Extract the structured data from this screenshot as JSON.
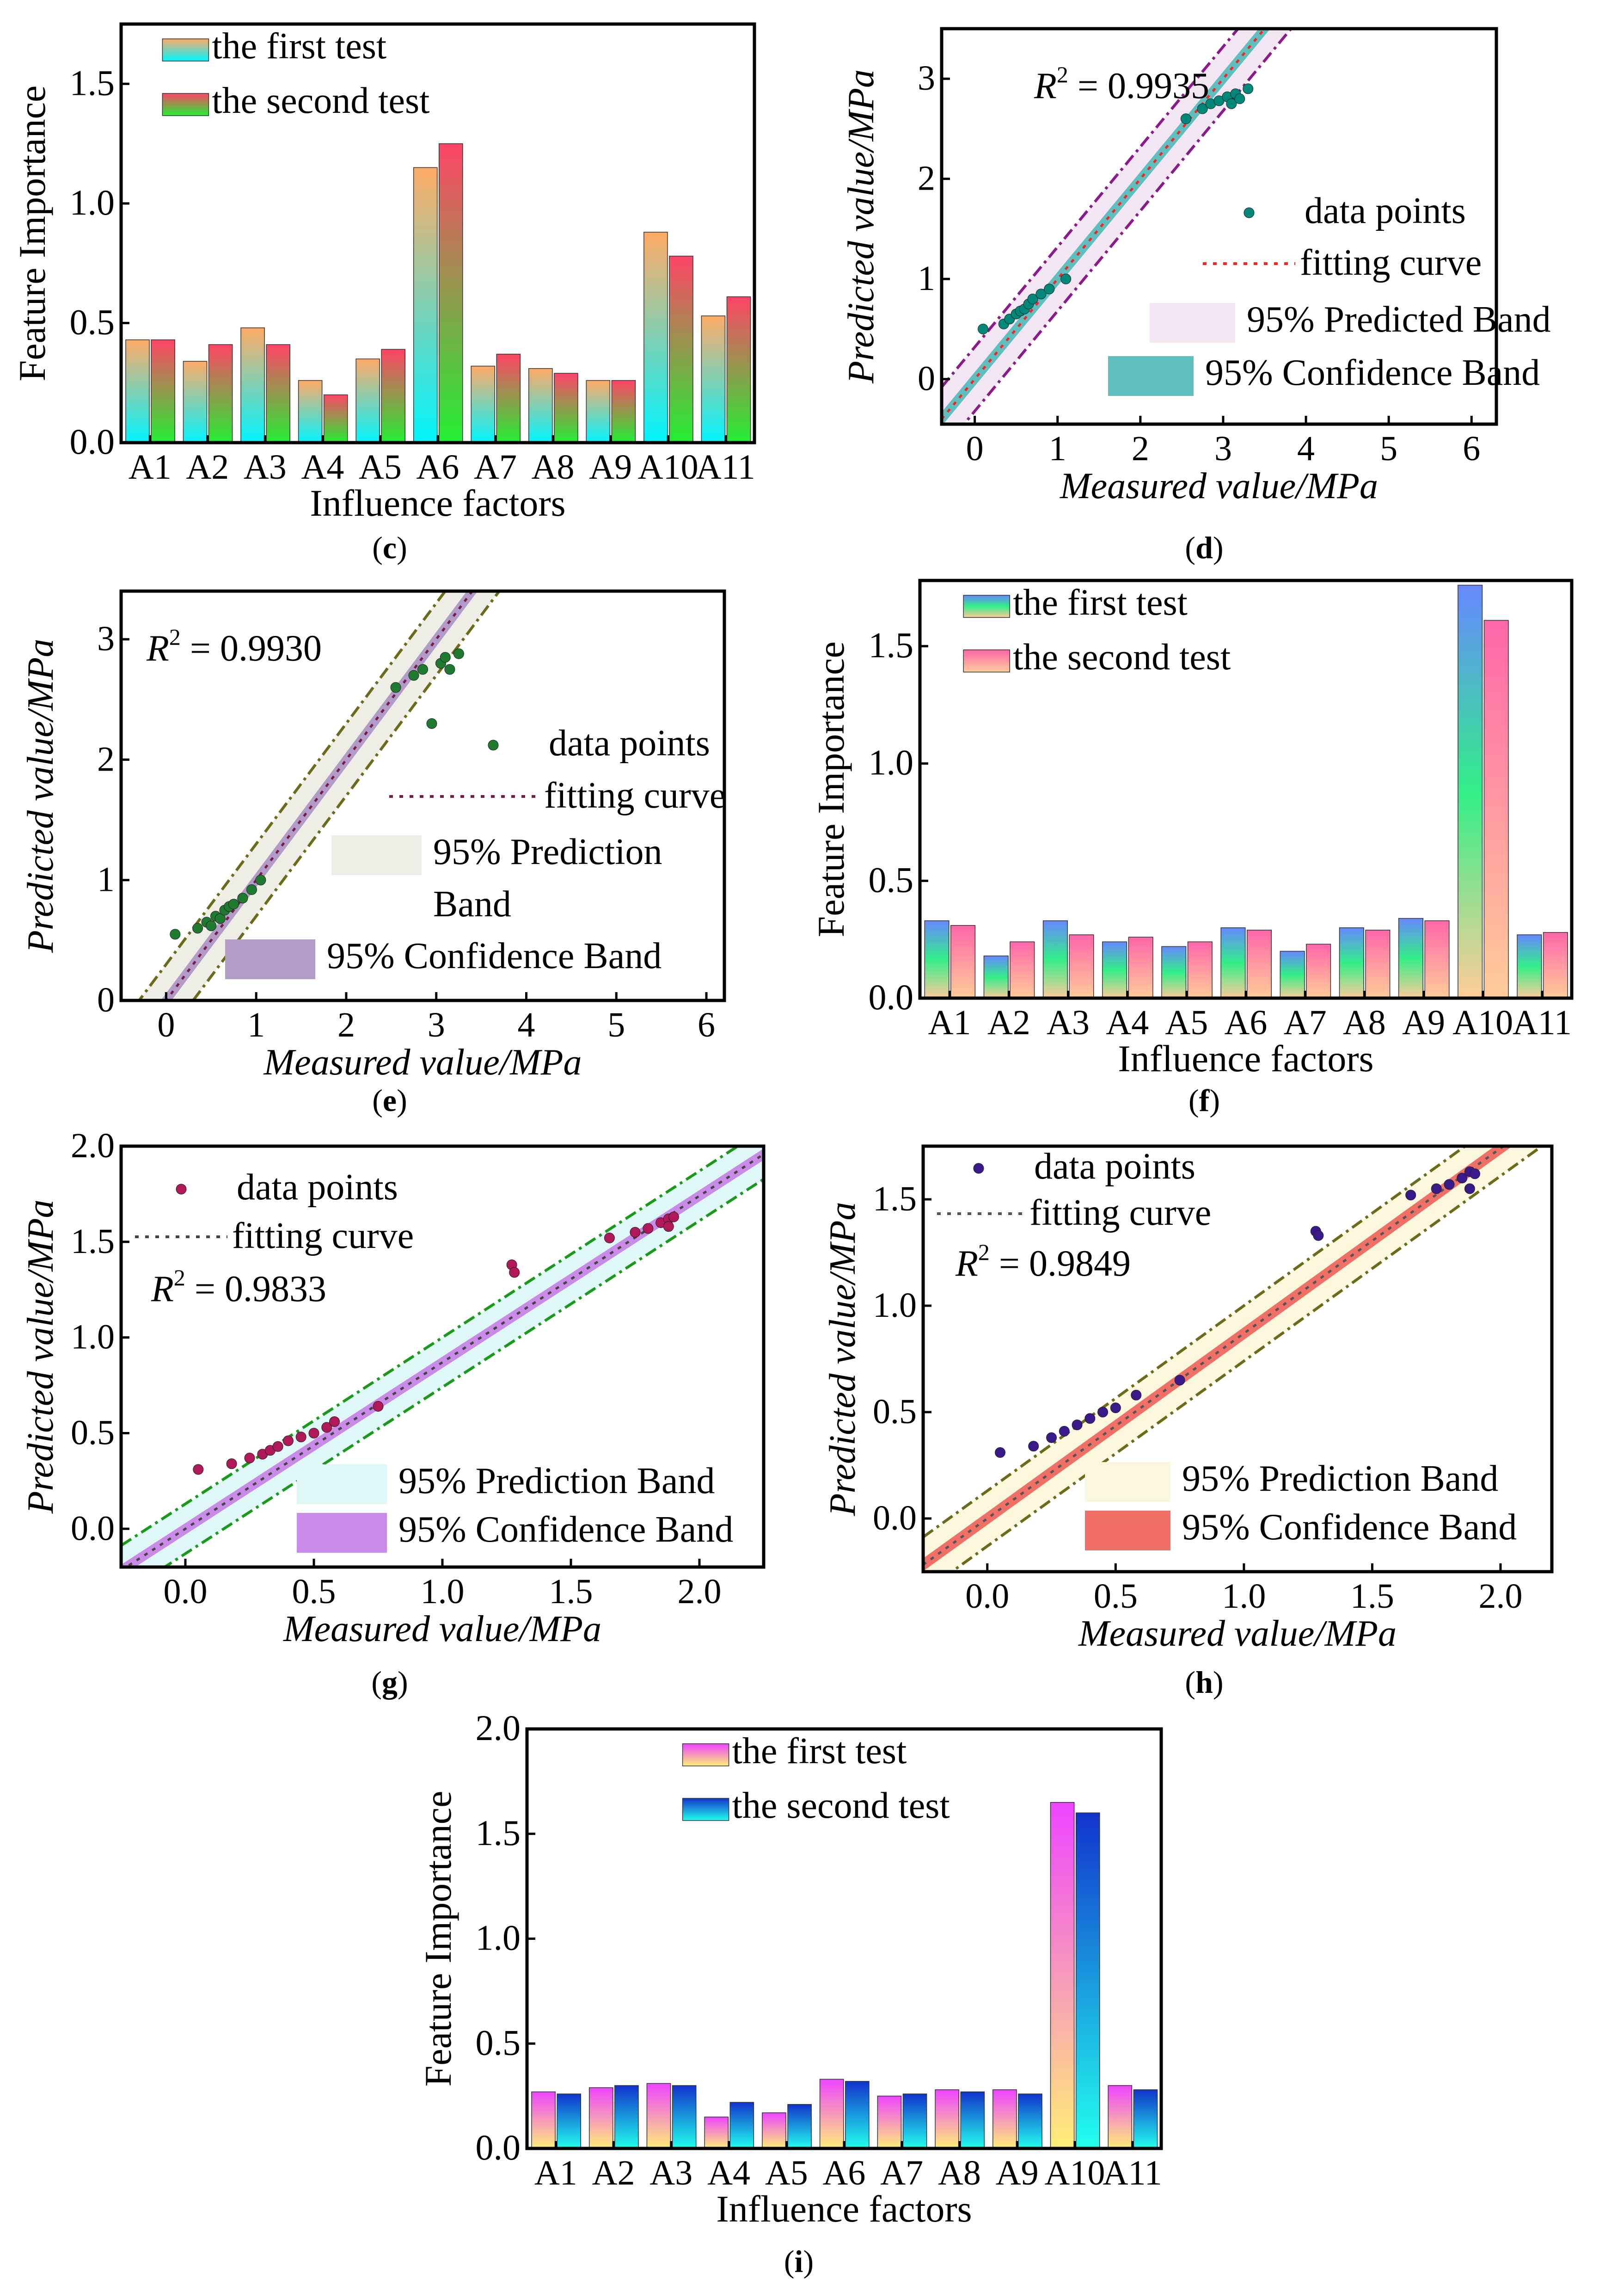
{
  "labels": {
    "c": {
      "open": "(",
      "letter": "c",
      "close": ")"
    },
    "d": {
      "open": "(",
      "letter": "d",
      "close": ")"
    },
    "e": {
      "open": "(",
      "letter": "e",
      "close": ")"
    },
    "f": {
      "open": "(",
      "letter": "f",
      "close": ")"
    },
    "g": {
      "open": "(",
      "letter": "g",
      "close": ")"
    },
    "h": {
      "open": "(",
      "letter": "h",
      "close": ")"
    },
    "i": {
      "open": "(",
      "letter": "i",
      "close": ")"
    }
  },
  "chart_data": [
    {
      "id": "c",
      "type": "bar",
      "xlabel": "Influence factors",
      "ylabel": "Feature Importance",
      "ylim": [
        0,
        1.75
      ],
      "yticks": [
        "0.0",
        "0.5",
        "1.0",
        "1.5"
      ],
      "categories": [
        "A1",
        "A2",
        "A3",
        "A4",
        "A5",
        "A6",
        "A7",
        "A8",
        "A9",
        "A10",
        "A11"
      ],
      "legend_position": "top-left",
      "series": [
        {
          "name": "the first test",
          "values": [
            0.43,
            0.34,
            0.48,
            0.26,
            0.35,
            1.15,
            0.32,
            0.31,
            0.26,
            0.88,
            0.53
          ],
          "colors": [
            "#00f5ff",
            "#ffaa66"
          ]
        },
        {
          "name": "the second test",
          "values": [
            0.43,
            0.41,
            0.41,
            0.2,
            0.39,
            1.25,
            0.37,
            0.29,
            0.26,
            0.78,
            0.61
          ],
          "colors": [
            "#22ee33",
            "#ff4466"
          ]
        }
      ]
    },
    {
      "id": "d",
      "type": "scatter",
      "xlabel": "Measured value/MPa",
      "ylabel": "Predicted value/MPa",
      "xlim": [
        -0.4,
        6.3
      ],
      "ylim": [
        -0.45,
        3.5
      ],
      "xticks": [
        "0",
        "1",
        "2",
        "3",
        "4",
        "5",
        "6"
      ],
      "yticks": [
        "0",
        "1",
        "2",
        "3"
      ],
      "annotation": {
        "prefix": "R",
        "sup": "2",
        "text": " = 0.9935"
      },
      "legend": {
        "points": "data points",
        "fit": "fitting curve",
        "pred": "95% Predicted Band",
        "conf": "95% Confidence Band"
      },
      "point_color": "#00897b",
      "fit_color": "#ff2020",
      "pred_line_color": "#8b1a8b",
      "pred_fill": "#f3e6f3",
      "conf_fill": "#5fbfbf",
      "pred_halfwidth": 0.32,
      "conf_halfwidth": 0.07,
      "fit": [
        0.0,
        1.0
      ],
      "points": [
        [
          0.1,
          0.5
        ],
        [
          0.35,
          0.55
        ],
        [
          0.42,
          0.6
        ],
        [
          0.5,
          0.65
        ],
        [
          0.55,
          0.68
        ],
        [
          0.6,
          0.7
        ],
        [
          0.65,
          0.75
        ],
        [
          0.7,
          0.8
        ],
        [
          0.8,
          0.85
        ],
        [
          0.9,
          0.9
        ],
        [
          1.1,
          1.0
        ],
        [
          2.55,
          2.6
        ],
        [
          2.75,
          2.7
        ],
        [
          2.85,
          2.75
        ],
        [
          2.95,
          2.78
        ],
        [
          3.05,
          2.82
        ],
        [
          3.1,
          2.75
        ],
        [
          3.15,
          2.85
        ],
        [
          3.2,
          2.8
        ],
        [
          3.3,
          2.9
        ]
      ]
    },
    {
      "id": "e",
      "type": "scatter",
      "xlabel": "Measured value/MPa",
      "ylabel": "Predicted value/MPa",
      "xlim": [
        -0.5,
        6.2
      ],
      "ylim": [
        0,
        3.4
      ],
      "xticks": [
        "0",
        "1",
        "2",
        "3",
        "4",
        "5",
        "6"
      ],
      "yticks": [
        "0",
        "1",
        "2",
        "3"
      ],
      "annotation": {
        "prefix": "R",
        "sup": "2",
        "text": " = 0.9930"
      },
      "legend": {
        "points": "data points",
        "fit": "fitting curve",
        "pred1": "95% Prediction",
        "pred2": "Band",
        "conf": "95% Confidence Band"
      },
      "point_color": "#1e7a2e",
      "fit_color": "#7a1a4a",
      "pred_line_color": "#6b6b1a",
      "pred_fill": "#eeeee6",
      "conf_fill": "#b09cc6",
      "pred_halfwidth": 0.3,
      "conf_halfwidth": 0.06,
      "fit": [
        0.0,
        1.0
      ],
      "points": [
        [
          0.1,
          0.55
        ],
        [
          0.35,
          0.6
        ],
        [
          0.45,
          0.65
        ],
        [
          0.5,
          0.62
        ],
        [
          0.55,
          0.7
        ],
        [
          0.6,
          0.68
        ],
        [
          0.65,
          0.75
        ],
        [
          0.7,
          0.78
        ],
        [
          0.75,
          0.8
        ],
        [
          0.85,
          0.85
        ],
        [
          0.95,
          0.92
        ],
        [
          1.05,
          1.0
        ],
        [
          2.55,
          2.6
        ],
        [
          2.75,
          2.7
        ],
        [
          2.85,
          2.75
        ],
        [
          2.95,
          2.3
        ],
        [
          3.05,
          2.8
        ],
        [
          3.1,
          2.85
        ],
        [
          3.15,
          2.75
        ],
        [
          3.25,
          2.88
        ]
      ]
    },
    {
      "id": "f",
      "type": "bar",
      "xlabel": "Influence factors",
      "ylabel": "Feature Importance",
      "ylim": [
        0,
        1.78
      ],
      "yticks": [
        "0.0",
        "0.5",
        "1.0",
        "1.5"
      ],
      "categories": [
        "A1",
        "A2",
        "A3",
        "A4",
        "A5",
        "A6",
        "A7",
        "A8",
        "A9",
        "A10",
        "A11"
      ],
      "legend_position": "top-left",
      "series": [
        {
          "name": "the first test",
          "values": [
            0.33,
            0.18,
            0.33,
            0.24,
            0.22,
            0.3,
            0.2,
            0.3,
            0.34,
            1.76,
            0.27
          ],
          "colors": [
            "#ffcc99",
            "#33ee88",
            "#6688ff"
          ]
        },
        {
          "name": "the second test",
          "values": [
            0.31,
            0.24,
            0.27,
            0.26,
            0.24,
            0.29,
            0.23,
            0.29,
            0.33,
            1.61,
            0.28
          ],
          "colors": [
            "#ffcc99",
            "#ff66aa"
          ]
        }
      ]
    },
    {
      "id": "g",
      "type": "scatter",
      "xlabel": "Measured value/MPa",
      "ylabel": "Predicted value/MPa",
      "xlim": [
        -0.25,
        2.25
      ],
      "ylim": [
        -0.2,
        2.0
      ],
      "xticks": [
        "0.0",
        "0.5",
        "1.0",
        "1.5",
        "2.0"
      ],
      "yticks": [
        "0.0",
        "0.5",
        "1.0",
        "1.5",
        "2.0"
      ],
      "annotation": {
        "prefix": "R",
        "sup": "2",
        "text": " = 0.9833"
      },
      "legend": {
        "points": "data points",
        "fit": "fitting curve",
        "pred": "95% Prediction Band",
        "conf": "95% Confidence Band"
      },
      "point_color": "#b0185a",
      "fit_color": "#444444",
      "pred_line_color": "#1a9a1a",
      "pred_fill": "#dff7f7",
      "conf_fill": "#c98ae8",
      "pred_halfwidth": 0.13,
      "conf_halfwidth": 0.03,
      "fit": [
        0.0,
        0.87
      ],
      "points": [
        [
          0.05,
          0.31
        ],
        [
          0.18,
          0.34
        ],
        [
          0.25,
          0.37
        ],
        [
          0.3,
          0.39
        ],
        [
          0.33,
          0.41
        ],
        [
          0.36,
          0.43
        ],
        [
          0.4,
          0.46
        ],
        [
          0.45,
          0.48
        ],
        [
          0.5,
          0.5
        ],
        [
          0.55,
          0.53
        ],
        [
          0.58,
          0.56
        ],
        [
          0.75,
          0.64
        ],
        [
          1.27,
          1.38
        ],
        [
          1.28,
          1.34
        ],
        [
          1.65,
          1.52
        ],
        [
          1.75,
          1.55
        ],
        [
          1.8,
          1.57
        ],
        [
          1.85,
          1.6
        ],
        [
          1.88,
          1.62
        ],
        [
          1.9,
          1.63
        ],
        [
          1.88,
          1.58
        ]
      ]
    },
    {
      "id": "h",
      "type": "scatter",
      "xlabel": "Measured value/MPa",
      "ylabel": "Predicted value/MPa",
      "xlim": [
        -0.25,
        2.2
      ],
      "ylim": [
        -0.25,
        1.75
      ],
      "xticks": [
        "0.0",
        "0.5",
        "1.0",
        "1.5",
        "2.0"
      ],
      "yticks": [
        "0.0",
        "0.5",
        "1.0",
        "1.5"
      ],
      "annotation": {
        "prefix": "R",
        "sup": "2",
        "text": " = 0.9849"
      },
      "legend": {
        "points": "data points",
        "fit": "fitting curve",
        "pred": "95% Prediction Band",
        "conf": "95% Confidence Band"
      },
      "point_color": "#3a1a8a",
      "fit_color": "#555555",
      "pred_line_color": "#6b6b1a",
      "pred_fill": "#fbf7dc",
      "conf_fill": "#f07068",
      "pred_halfwidth": 0.13,
      "conf_halfwidth": 0.03,
      "fit": [
        0.0,
        0.87
      ],
      "points": [
        [
          0.05,
          0.31
        ],
        [
          0.18,
          0.34
        ],
        [
          0.25,
          0.38
        ],
        [
          0.3,
          0.41
        ],
        [
          0.35,
          0.44
        ],
        [
          0.4,
          0.47
        ],
        [
          0.45,
          0.5
        ],
        [
          0.5,
          0.52
        ],
        [
          0.58,
          0.58
        ],
        [
          0.75,
          0.65
        ],
        [
          1.28,
          1.35
        ],
        [
          1.29,
          1.33
        ],
        [
          1.65,
          1.52
        ],
        [
          1.75,
          1.55
        ],
        [
          1.8,
          1.57
        ],
        [
          1.85,
          1.6
        ],
        [
          1.88,
          1.63
        ],
        [
          1.9,
          1.62
        ],
        [
          1.88,
          1.55
        ]
      ]
    },
    {
      "id": "i",
      "type": "bar",
      "xlabel": "Influence factors",
      "ylabel": "Feature Importance",
      "ylim": [
        0,
        2.0
      ],
      "yticks": [
        "0.0",
        "0.5",
        "1.0",
        "1.5",
        "2.0"
      ],
      "categories": [
        "A1",
        "A2",
        "A3",
        "A4",
        "A5",
        "A6",
        "A7",
        "A8",
        "A9",
        "A10",
        "A11"
      ],
      "legend_position": "top-center",
      "series": [
        {
          "name": "the first test",
          "values": [
            0.27,
            0.29,
            0.31,
            0.15,
            0.17,
            0.33,
            0.25,
            0.28,
            0.28,
            1.65,
            0.3
          ],
          "colors": [
            "#ffee77",
            "#ee44ff"
          ]
        },
        {
          "name": "the second test",
          "values": [
            0.26,
            0.3,
            0.3,
            0.22,
            0.21,
            0.32,
            0.26,
            0.27,
            0.26,
            1.6,
            0.28
          ],
          "colors": [
            "#22ffee",
            "#1133cc"
          ]
        }
      ]
    }
  ]
}
